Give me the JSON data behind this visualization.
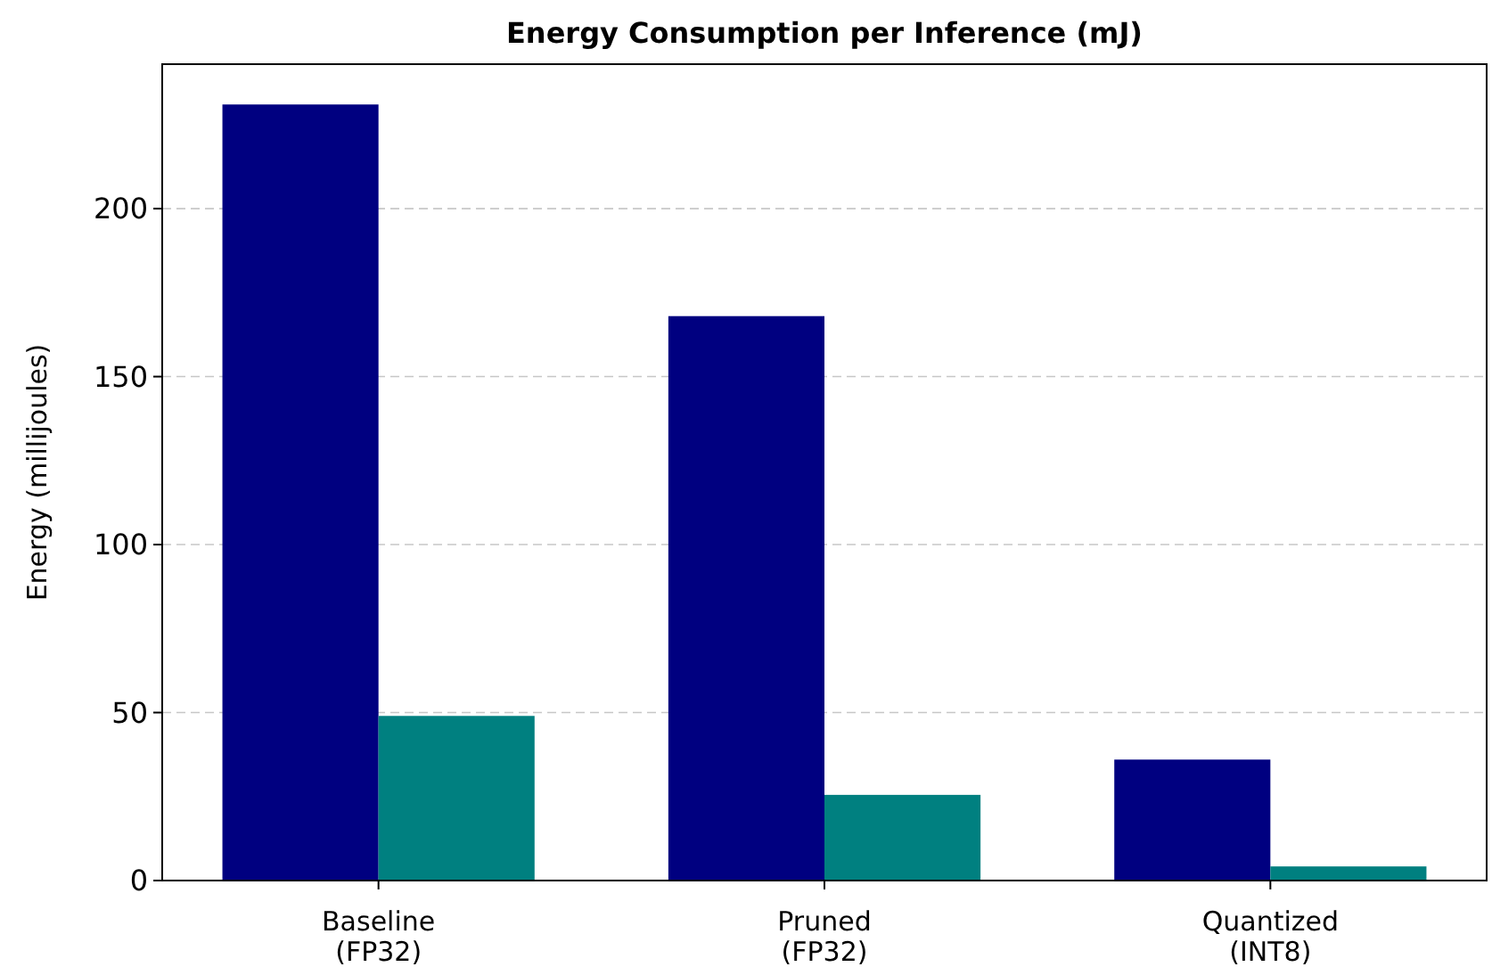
{
  "chart_data": {
    "type": "bar",
    "title": "Energy Consumption per Inference (mJ)",
    "ylabel": "Energy (millijoules)",
    "categories": [
      "Baseline\n(FP32)",
      "Pruned\n(FP32)",
      "Quantized\n(INT8)"
    ],
    "series": [
      {
        "color": "#000080",
        "values": [
          231,
          168,
          36
        ]
      },
      {
        "color": "#008080",
        "values": [
          49,
          25.5,
          4.2
        ]
      }
    ],
    "ylim": [
      0,
      243
    ],
    "yticks": [
      0,
      50,
      100,
      150,
      200
    ],
    "grid": "y"
  }
}
